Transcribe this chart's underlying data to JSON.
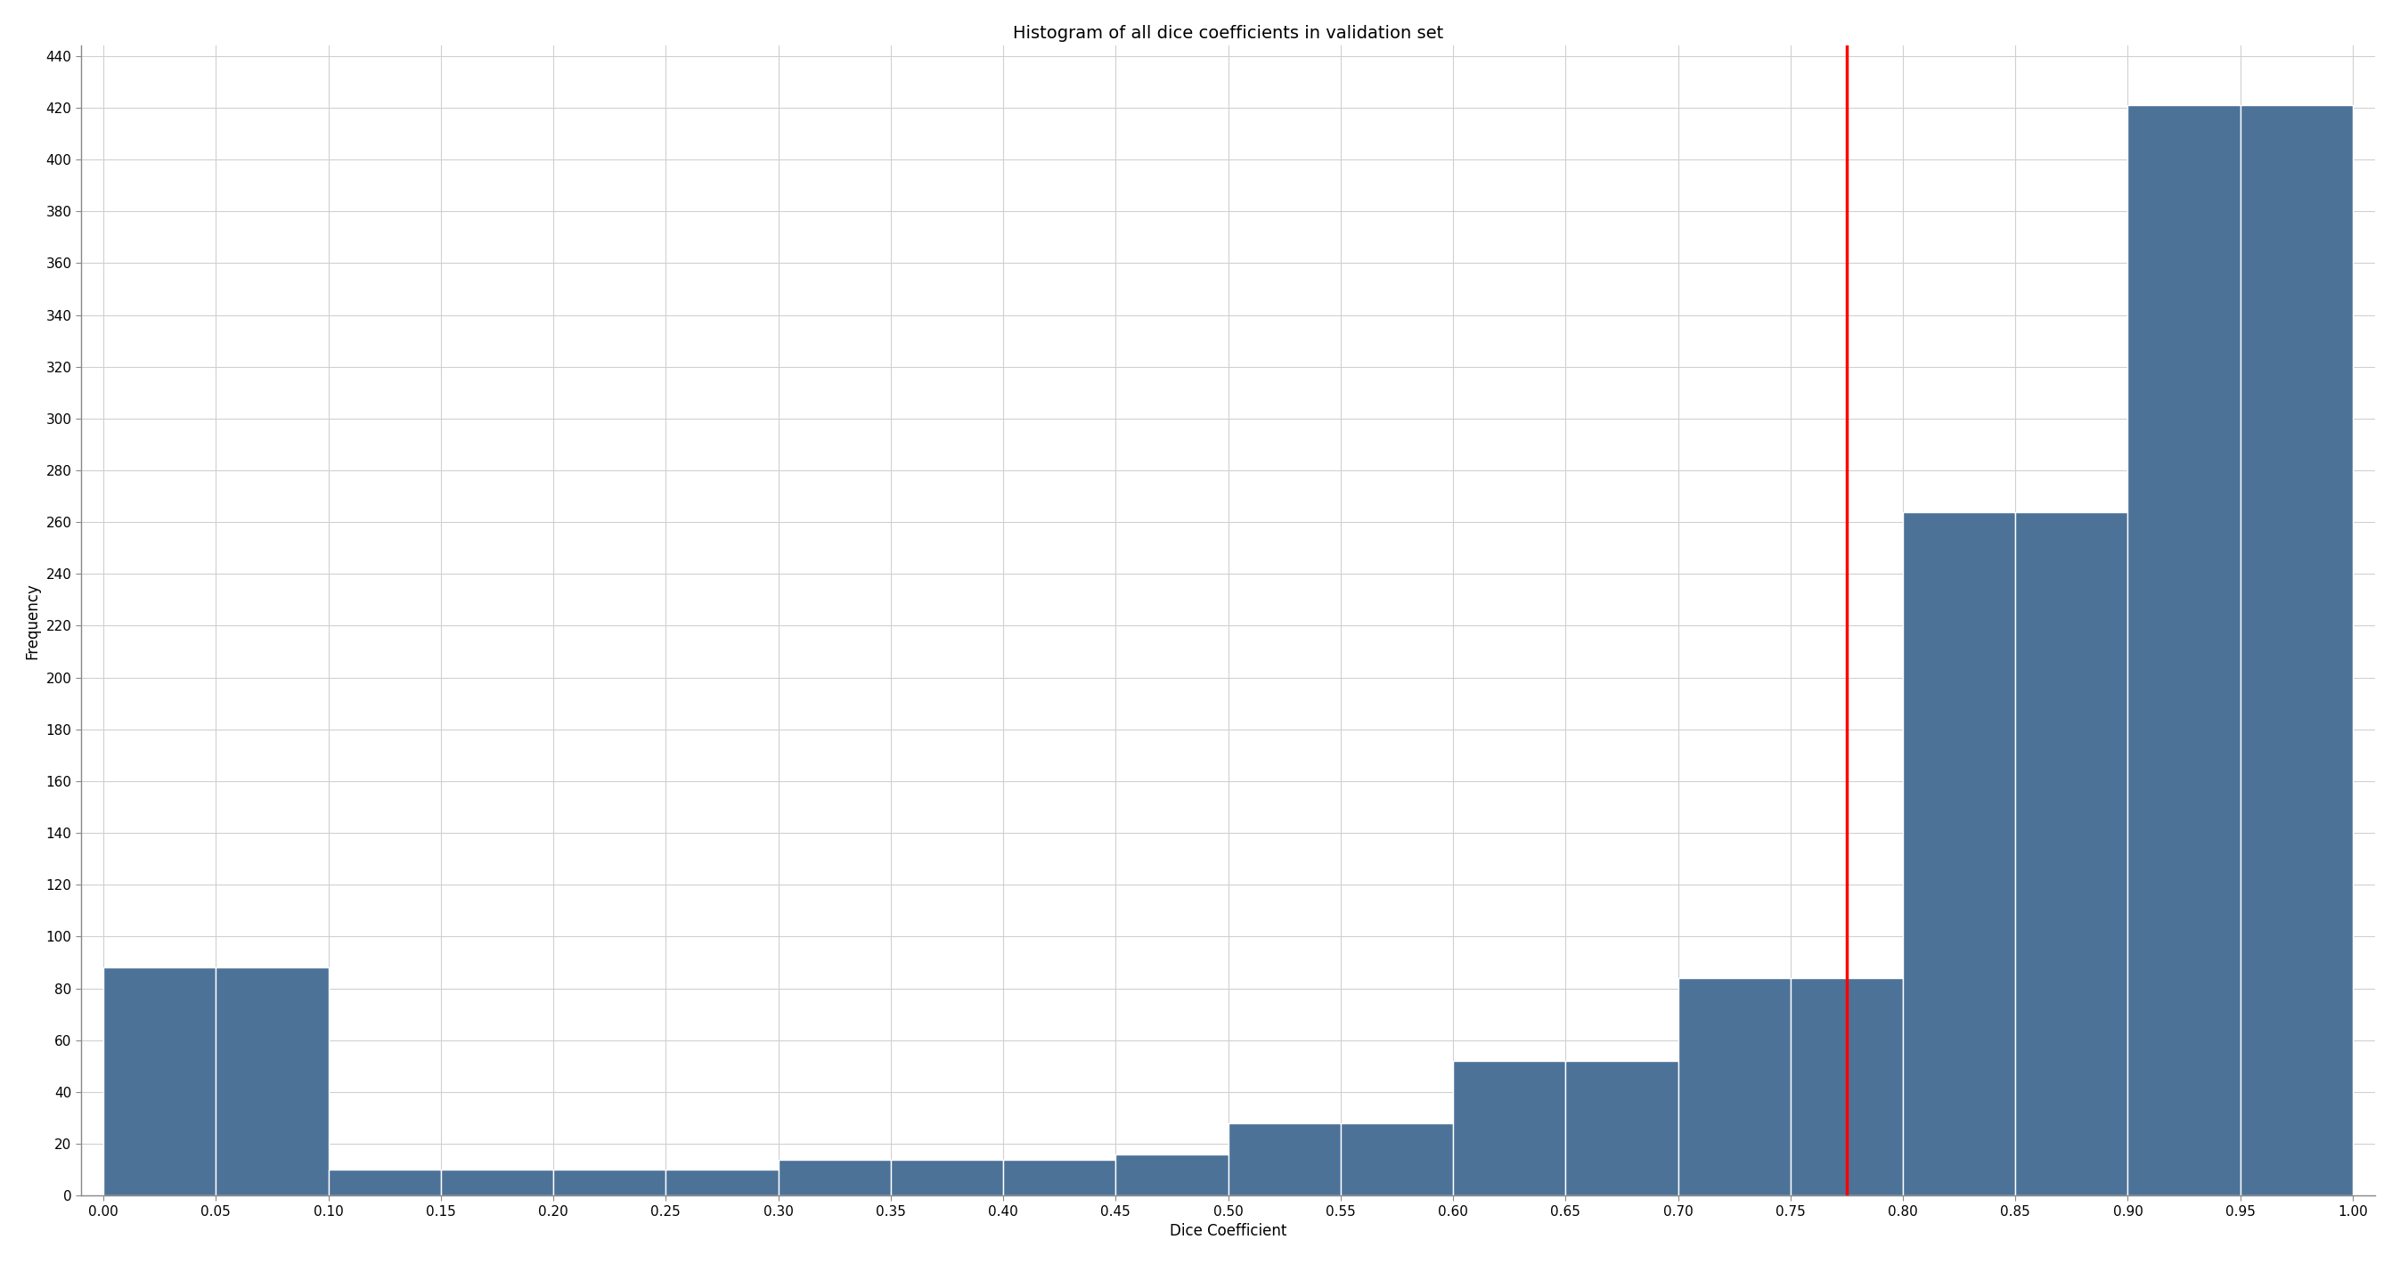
{
  "title": "Histogram of all dice coefficients in validation set",
  "xlabel": "Dice Coefficient",
  "ylabel": "Frequency",
  "bar_color": "#4d7298",
  "background_color": "#ffffff",
  "grid_color": "#d0d0d0",
  "vline_x": 0.775,
  "vline_color": "red",
  "bin_edges": [
    0.0,
    0.05,
    0.1,
    0.15,
    0.2,
    0.25,
    0.3,
    0.35,
    0.4,
    0.45,
    0.5,
    0.55,
    0.6,
    0.65,
    0.7,
    0.75,
    0.8,
    0.85,
    0.9,
    0.95,
    1.0
  ],
  "bar_heights": [
    88,
    88,
    10,
    10,
    10,
    10,
    14,
    14,
    14,
    16,
    28,
    28,
    52,
    52,
    84,
    84,
    264,
    264,
    421,
    421
  ],
  "ylim": [
    0,
    444
  ],
  "xlim": [
    -0.01,
    1.01
  ],
  "yticks": [
    0,
    20,
    40,
    60,
    80,
    100,
    120,
    140,
    160,
    180,
    200,
    220,
    240,
    260,
    280,
    300,
    320,
    340,
    360,
    380,
    400,
    420,
    440
  ],
  "xticks": [
    0.0,
    0.05,
    0.1,
    0.15,
    0.2,
    0.25,
    0.3,
    0.35,
    0.4,
    0.45,
    0.5,
    0.55,
    0.6,
    0.65,
    0.7,
    0.75,
    0.8,
    0.85,
    0.9,
    0.95,
    1.0
  ],
  "title_fontsize": 14,
  "label_fontsize": 12,
  "tick_fontsize": 11,
  "spine_color": "#888888"
}
